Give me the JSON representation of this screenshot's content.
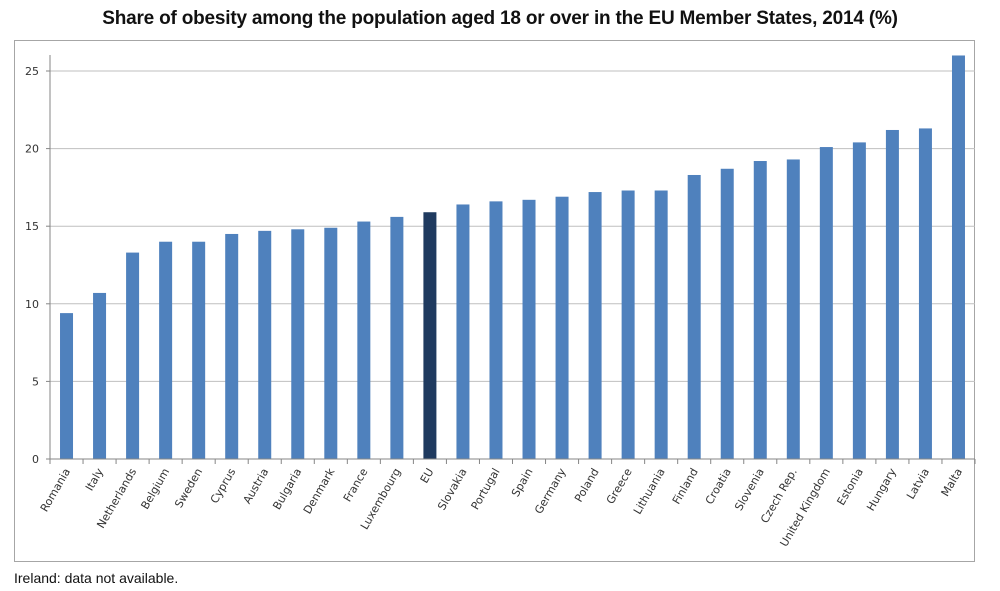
{
  "chart_data": {
    "type": "bar",
    "title": "Share of obesity among the population aged 18 or over in the EU Member States, 2014 (%)",
    "xlabel": "",
    "ylabel": "",
    "ylim": [
      0,
      26
    ],
    "yticks": [
      0,
      5,
      10,
      15,
      20,
      25
    ],
    "grid": true,
    "legend": "none",
    "categories": [
      "Romania",
      "Italy",
      "Netherlands",
      "Belgium",
      "Sweden",
      "Cyprus",
      "Austria",
      "Bulgaria",
      "Denmark",
      "France",
      "Luxembourg",
      "EU",
      "Slovakia",
      "Portugal",
      "Spain",
      "Germany",
      "Poland",
      "Greece",
      "Lithuania",
      "Finland",
      "Croatia",
      "Slovenia",
      "Czech Rep.",
      "United Kingdom",
      "Estonia",
      "Hungary",
      "Latvia",
      "Malta"
    ],
    "values": [
      9.4,
      10.7,
      13.3,
      14.0,
      14.0,
      14.5,
      14.7,
      14.8,
      14.9,
      15.3,
      15.6,
      15.9,
      16.4,
      16.6,
      16.7,
      16.9,
      17.2,
      17.3,
      17.3,
      18.3,
      18.7,
      19.2,
      19.3,
      20.1,
      20.4,
      21.2,
      21.3,
      26.0
    ],
    "highlight": "EU",
    "colors": {
      "bar": "#4f81bd",
      "highlight": "#1f3a5f",
      "grid": "#bfbfbf"
    },
    "note": "Ireland: data not available."
  }
}
